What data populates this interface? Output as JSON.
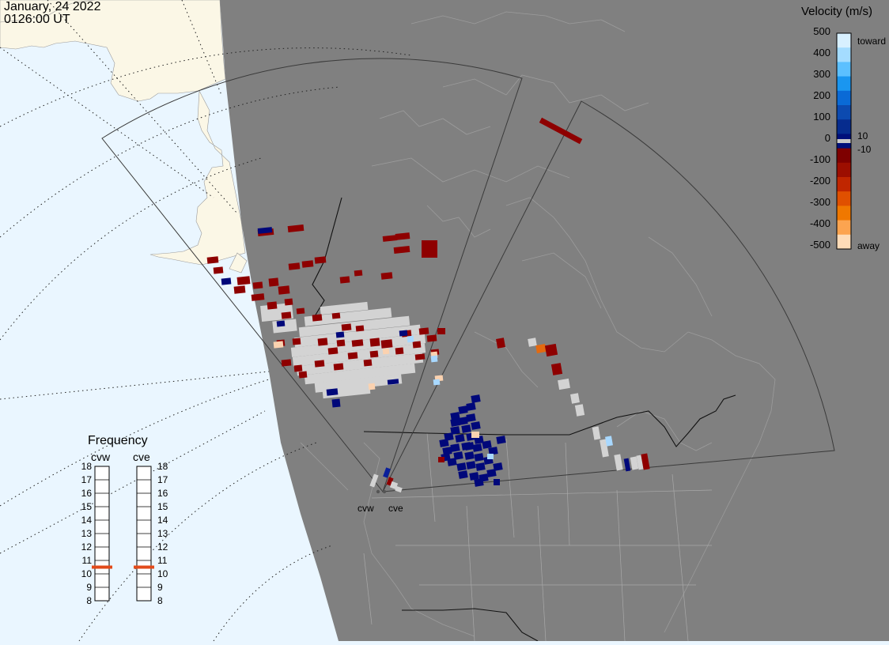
{
  "header": {
    "date": "January, 24 2022",
    "time": "0126:00 UT"
  },
  "velocity_legend": {
    "title": "Velocity (m/s)",
    "ticks": [
      "500",
      "400",
      "300",
      "200",
      "100",
      "0",
      "-100",
      "-200",
      "-300",
      "-400",
      "-500"
    ],
    "inner_labels": [
      "10",
      "-10"
    ],
    "toward_label": "toward",
    "away_label": "away",
    "colors": [
      "#d8f0ff",
      "#a4dcff",
      "#5cc0ff",
      "#1a96f0",
      "#0a6ad6",
      "#0c4ab0",
      "#062c8e",
      "#000f7a",
      "#7e0000",
      "#9c0e00",
      "#c02600",
      "#e05000",
      "#f07800",
      "#fca450",
      "#fedcb8"
    ]
  },
  "frequency_panel": {
    "title": "Frequency",
    "radars": [
      {
        "name": "cvw",
        "frequency_mhz": 11
      },
      {
        "name": "cve",
        "frequency_mhz": 11
      }
    ],
    "scale": [
      "18",
      "17",
      "16",
      "15",
      "14",
      "13",
      "12",
      "11",
      "10",
      "9",
      "8"
    ],
    "marker_color": "#e24a1a"
  },
  "map": {
    "ocean_color": "#eaf6ff",
    "land_color": "#fbf7e6",
    "night_color": "#808080",
    "sites": [
      "cvw",
      "cve"
    ]
  }
}
